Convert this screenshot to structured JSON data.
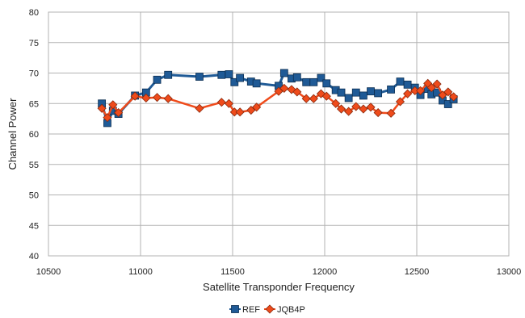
{
  "chart_data": {
    "type": "line",
    "title": "",
    "xlabel": "Satellite Transponder Frequency",
    "ylabel": "Channel Power",
    "xlim": [
      10500,
      13000
    ],
    "ylim": [
      40,
      80
    ],
    "xticks": [
      10500,
      11000,
      11500,
      12000,
      12500,
      13000
    ],
    "yticks": [
      40,
      45,
      50,
      55,
      60,
      65,
      70,
      75,
      80
    ],
    "grid": true,
    "legend_position": "bottom",
    "series": [
      {
        "name": "REF",
        "color": "#1f5a96",
        "marker": "square",
        "points": [
          [
            10790,
            65.0
          ],
          [
            10820,
            61.8
          ],
          [
            10850,
            63.8
          ],
          [
            10880,
            63.3
          ],
          [
            10970,
            66.3
          ],
          [
            11030,
            66.8
          ],
          [
            11090,
            68.9
          ],
          [
            11150,
            69.7
          ],
          [
            11320,
            69.4
          ],
          [
            11440,
            69.7
          ],
          [
            11480,
            69.8
          ],
          [
            11510,
            68.5
          ],
          [
            11540,
            69.2
          ],
          [
            11600,
            68.6
          ],
          [
            11630,
            68.3
          ],
          [
            11750,
            67.9
          ],
          [
            11780,
            70.0
          ],
          [
            11820,
            69.1
          ],
          [
            11850,
            69.3
          ],
          [
            11900,
            68.5
          ],
          [
            11940,
            68.5
          ],
          [
            11980,
            69.2
          ],
          [
            12010,
            68.3
          ],
          [
            12060,
            67.2
          ],
          [
            12090,
            66.8
          ],
          [
            12130,
            65.9
          ],
          [
            12170,
            66.8
          ],
          [
            12210,
            66.3
          ],
          [
            12250,
            67.0
          ],
          [
            12290,
            66.7
          ],
          [
            12360,
            67.3
          ],
          [
            12410,
            68.6
          ],
          [
            12450,
            68.1
          ],
          [
            12490,
            67.6
          ],
          [
            12520,
            66.4
          ],
          [
            12560,
            67.4
          ],
          [
            12580,
            66.5
          ],
          [
            12610,
            66.8
          ],
          [
            12640,
            65.5
          ],
          [
            12670,
            64.9
          ],
          [
            12700,
            65.7
          ]
        ]
      },
      {
        "name": "JQB4P",
        "color": "#ef4b1b",
        "marker": "diamond",
        "points": [
          [
            10790,
            64.2
          ],
          [
            10820,
            62.7
          ],
          [
            10850,
            64.8
          ],
          [
            10880,
            63.5
          ],
          [
            10970,
            66.2
          ],
          [
            11030,
            65.9
          ],
          [
            11090,
            66.0
          ],
          [
            11150,
            65.8
          ],
          [
            11320,
            64.2
          ],
          [
            11440,
            65.2
          ],
          [
            11480,
            65.0
          ],
          [
            11510,
            63.6
          ],
          [
            11540,
            63.6
          ],
          [
            11600,
            63.9
          ],
          [
            11630,
            64.4
          ],
          [
            11750,
            67.0
          ],
          [
            11780,
            67.5
          ],
          [
            11820,
            67.3
          ],
          [
            11850,
            66.9
          ],
          [
            11900,
            65.8
          ],
          [
            11940,
            65.8
          ],
          [
            11980,
            66.6
          ],
          [
            12010,
            66.2
          ],
          [
            12060,
            65.0
          ],
          [
            12090,
            64.1
          ],
          [
            12130,
            63.7
          ],
          [
            12170,
            64.5
          ],
          [
            12210,
            64.1
          ],
          [
            12250,
            64.4
          ],
          [
            12290,
            63.5
          ],
          [
            12360,
            63.4
          ],
          [
            12410,
            65.3
          ],
          [
            12450,
            66.6
          ],
          [
            12490,
            67.1
          ],
          [
            12520,
            67.1
          ],
          [
            12560,
            68.3
          ],
          [
            12580,
            67.6
          ],
          [
            12610,
            68.2
          ],
          [
            12640,
            66.4
          ],
          [
            12670,
            66.9
          ],
          [
            12700,
            66.1
          ]
        ]
      }
    ]
  }
}
